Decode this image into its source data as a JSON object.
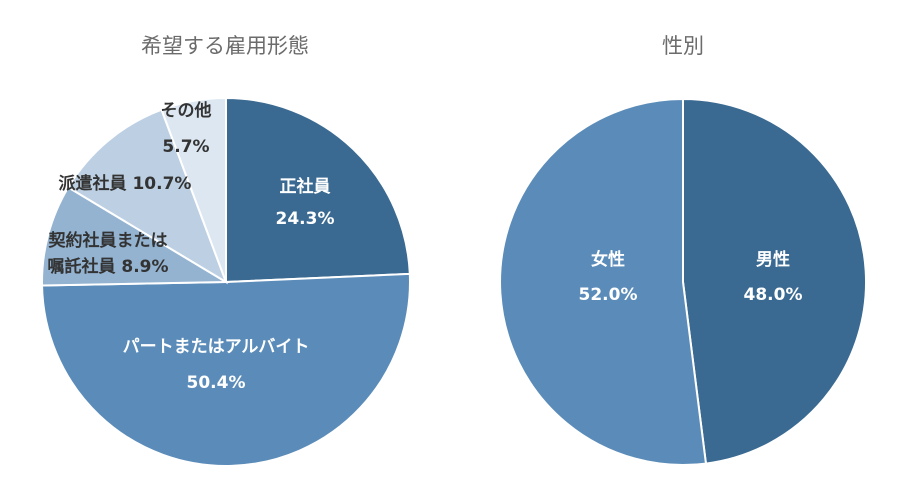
{
  "chart_data": [
    {
      "type": "pie",
      "title": "希望する雇用形態",
      "colors": [
        "#3a6a92",
        "#5b8cb9",
        "#93b3d1",
        "#bdd0e3",
        "#dce7f1"
      ],
      "slices": [
        {
          "label": "正社員",
          "value": 24.3,
          "display": "24.3%"
        },
        {
          "label": "パートまたはアルバイト",
          "value": 50.4,
          "display": "50.4%"
        },
        {
          "label": "契約社員または",
          "label2": "嘱託社員",
          "value": 8.9,
          "display": "8.9%"
        },
        {
          "label": "派遣社員",
          "value": 10.7,
          "display": "10.7%"
        },
        {
          "label": "その他",
          "value": 5.7,
          "display": "5.7%"
        }
      ]
    },
    {
      "type": "pie",
      "title": "性別",
      "colors": [
        "#3a6a92",
        "#5b8cb9"
      ],
      "slices": [
        {
          "label": "男性",
          "value": 48.0,
          "display": "48.0%"
        },
        {
          "label": "女性",
          "value": 52.0,
          "display": "52.0%"
        }
      ]
    }
  ]
}
